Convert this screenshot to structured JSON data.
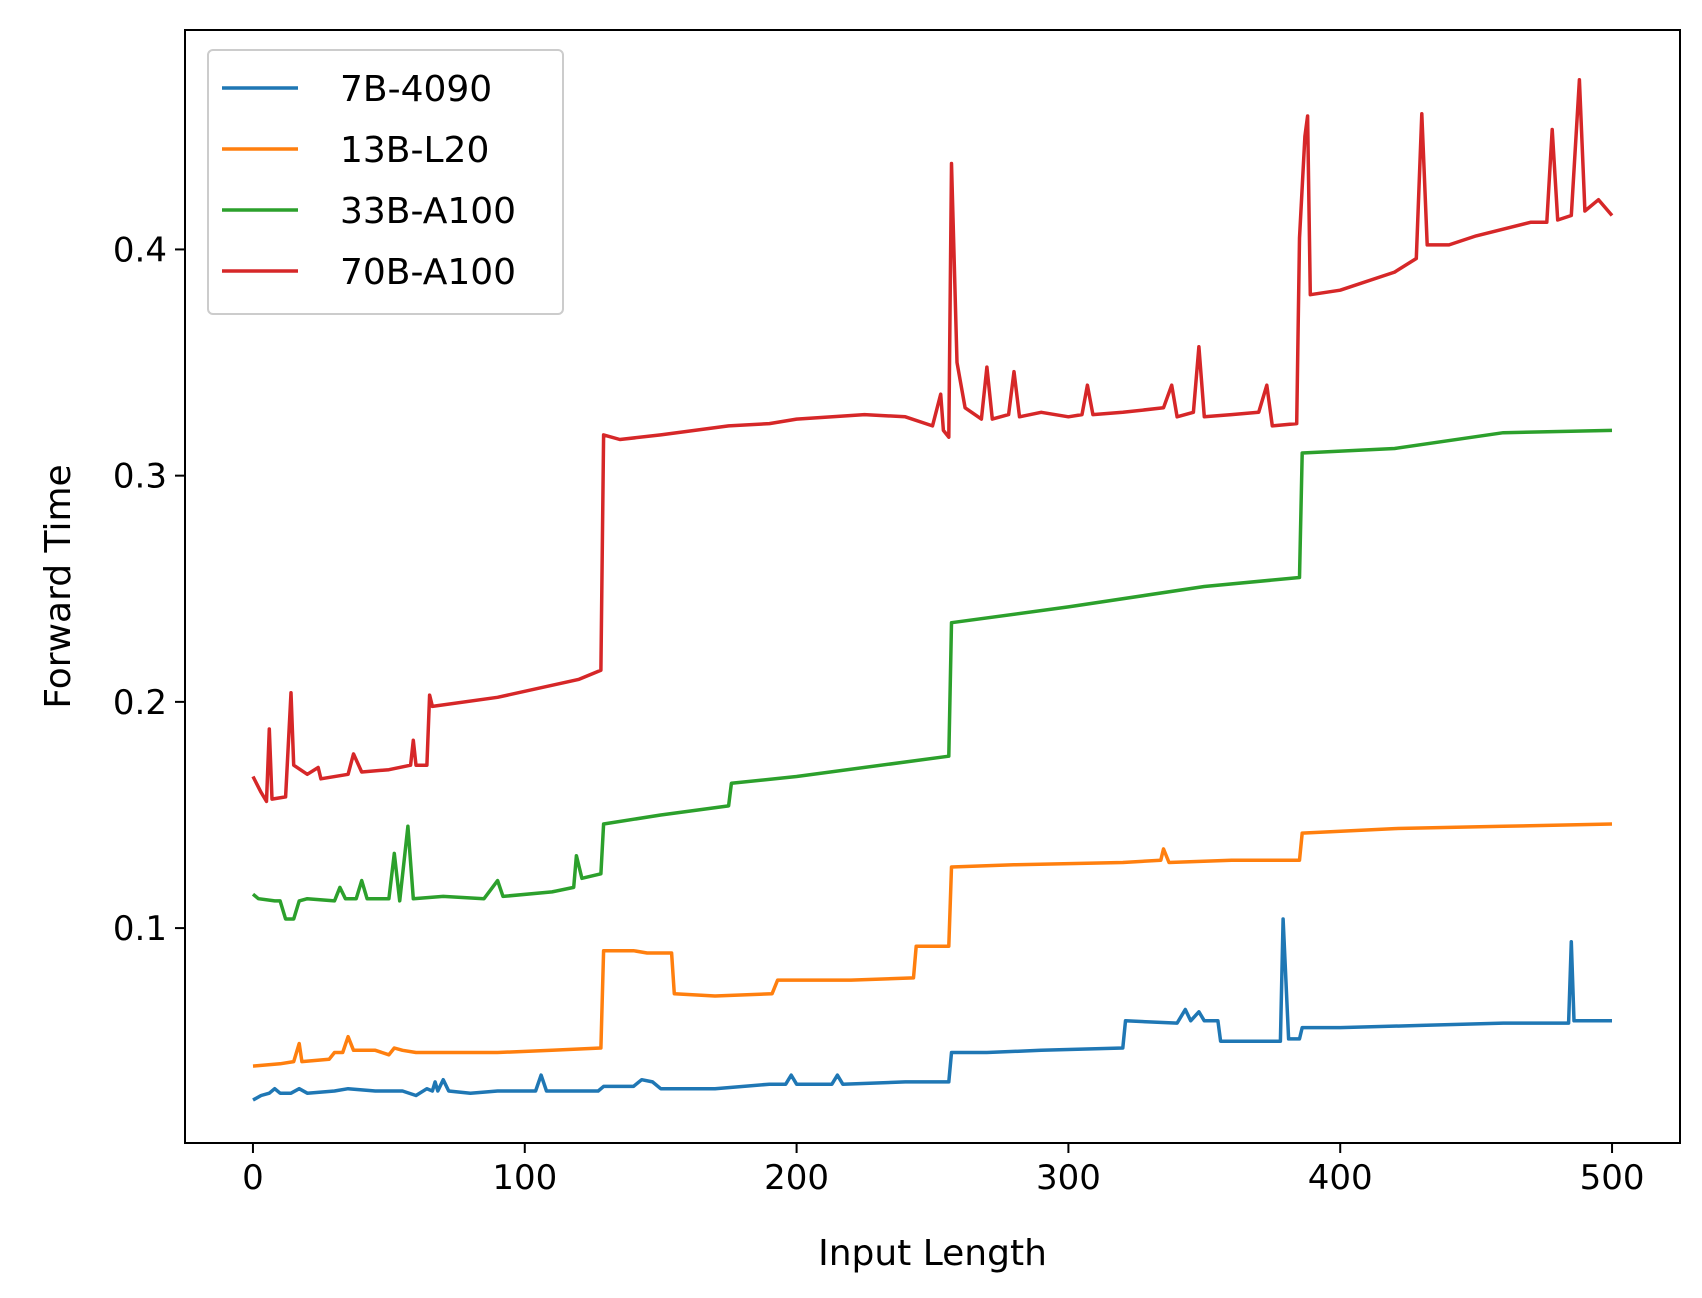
{
  "chart_data": {
    "type": "line",
    "xlabel": "Input Length",
    "ylabel": "Forward Time",
    "xlim": [
      -25,
      525
    ],
    "ylim": [
      0.005,
      0.497
    ],
    "xticks": [
      0,
      100,
      200,
      300,
      400,
      500
    ],
    "yticks": [
      0.1,
      0.2,
      0.3,
      0.4
    ],
    "xtick_labels": [
      "0",
      "100",
      "200",
      "300",
      "400",
      "500"
    ],
    "ytick_labels": [
      "0.1",
      "0.2",
      "0.3",
      "0.4"
    ],
    "grid": false,
    "legend_position": "top-left",
    "series": [
      {
        "name": "7B-4090",
        "color": "#1f77b4",
        "points": [
          [
            0,
            0.024
          ],
          [
            3,
            0.026
          ],
          [
            6,
            0.027
          ],
          [
            8,
            0.029
          ],
          [
            10,
            0.027
          ],
          [
            14,
            0.027
          ],
          [
            17,
            0.029
          ],
          [
            20,
            0.027
          ],
          [
            30,
            0.028
          ],
          [
            35,
            0.029
          ],
          [
            45,
            0.028
          ],
          [
            55,
            0.028
          ],
          [
            60,
            0.026
          ],
          [
            64,
            0.029
          ],
          [
            66,
            0.028
          ],
          [
            67,
            0.032
          ],
          [
            68,
            0.028
          ],
          [
            70,
            0.033
          ],
          [
            72,
            0.028
          ],
          [
            80,
            0.027
          ],
          [
            90,
            0.028
          ],
          [
            104,
            0.028
          ],
          [
            106,
            0.035
          ],
          [
            108,
            0.028
          ],
          [
            120,
            0.028
          ],
          [
            127,
            0.028
          ],
          [
            129,
            0.03
          ],
          [
            140,
            0.03
          ],
          [
            143,
            0.033
          ],
          [
            147,
            0.032
          ],
          [
            150,
            0.029
          ],
          [
            170,
            0.029
          ],
          [
            190,
            0.031
          ],
          [
            196,
            0.031
          ],
          [
            198,
            0.035
          ],
          [
            200,
            0.031
          ],
          [
            213,
            0.031
          ],
          [
            215,
            0.035
          ],
          [
            217,
            0.031
          ],
          [
            240,
            0.032
          ],
          [
            256,
            0.032
          ],
          [
            257,
            0.045
          ],
          [
            270,
            0.045
          ],
          [
            290,
            0.046
          ],
          [
            320,
            0.047
          ],
          [
            321,
            0.059
          ],
          [
            340,
            0.058
          ],
          [
            343,
            0.064
          ],
          [
            345,
            0.059
          ],
          [
            348,
            0.063
          ],
          [
            350,
            0.059
          ],
          [
            355,
            0.059
          ],
          [
            356,
            0.05
          ],
          [
            378,
            0.05
          ],
          [
            379,
            0.104
          ],
          [
            381,
            0.051
          ],
          [
            385,
            0.051
          ],
          [
            386,
            0.056
          ],
          [
            400,
            0.056
          ],
          [
            430,
            0.057
          ],
          [
            460,
            0.058
          ],
          [
            484,
            0.058
          ],
          [
            485,
            0.094
          ],
          [
            486,
            0.059
          ],
          [
            500,
            0.059
          ]
        ]
      },
      {
        "name": "13B-L20",
        "color": "#ff7f0e",
        "points": [
          [
            0,
            0.039
          ],
          [
            10,
            0.04
          ],
          [
            15,
            0.041
          ],
          [
            17,
            0.049
          ],
          [
            18,
            0.041
          ],
          [
            28,
            0.042
          ],
          [
            30,
            0.045
          ],
          [
            33,
            0.045
          ],
          [
            35,
            0.052
          ],
          [
            37,
            0.046
          ],
          [
            45,
            0.046
          ],
          [
            50,
            0.044
          ],
          [
            52,
            0.047
          ],
          [
            55,
            0.046
          ],
          [
            60,
            0.045
          ],
          [
            64,
            0.045
          ],
          [
            70,
            0.045
          ],
          [
            90,
            0.045
          ],
          [
            110,
            0.046
          ],
          [
            128,
            0.047
          ],
          [
            129,
            0.09
          ],
          [
            140,
            0.09
          ],
          [
            145,
            0.089
          ],
          [
            154,
            0.089
          ],
          [
            155,
            0.071
          ],
          [
            170,
            0.07
          ],
          [
            191,
            0.071
          ],
          [
            193,
            0.077
          ],
          [
            220,
            0.077
          ],
          [
            243,
            0.078
          ],
          [
            244,
            0.092
          ],
          [
            256,
            0.092
          ],
          [
            257,
            0.127
          ],
          [
            280,
            0.128
          ],
          [
            320,
            0.129
          ],
          [
            334,
            0.13
          ],
          [
            335,
            0.135
          ],
          [
            337,
            0.129
          ],
          [
            360,
            0.13
          ],
          [
            385,
            0.13
          ],
          [
            386,
            0.142
          ],
          [
            420,
            0.144
          ],
          [
            460,
            0.145
          ],
          [
            500,
            0.146
          ]
        ]
      },
      {
        "name": "33B-A100",
        "color": "#2ca02c",
        "points": [
          [
            0,
            0.115
          ],
          [
            2,
            0.113
          ],
          [
            8,
            0.112
          ],
          [
            10,
            0.112
          ],
          [
            12,
            0.104
          ],
          [
            15,
            0.104
          ],
          [
            17,
            0.112
          ],
          [
            20,
            0.113
          ],
          [
            30,
            0.112
          ],
          [
            32,
            0.118
          ],
          [
            34,
            0.113
          ],
          [
            38,
            0.113
          ],
          [
            40,
            0.121
          ],
          [
            42,
            0.113
          ],
          [
            50,
            0.113
          ],
          [
            52,
            0.133
          ],
          [
            54,
            0.112
          ],
          [
            57,
            0.145
          ],
          [
            59,
            0.113
          ],
          [
            70,
            0.114
          ],
          [
            85,
            0.113
          ],
          [
            90,
            0.121
          ],
          [
            92,
            0.114
          ],
          [
            110,
            0.116
          ],
          [
            118,
            0.118
          ],
          [
            119,
            0.132
          ],
          [
            121,
            0.122
          ],
          [
            128,
            0.124
          ],
          [
            129,
            0.146
          ],
          [
            150,
            0.15
          ],
          [
            175,
            0.154
          ],
          [
            176,
            0.164
          ],
          [
            200,
            0.167
          ],
          [
            256,
            0.176
          ],
          [
            257,
            0.235
          ],
          [
            300,
            0.242
          ],
          [
            350,
            0.251
          ],
          [
            385,
            0.255
          ],
          [
            386,
            0.31
          ],
          [
            420,
            0.312
          ],
          [
            460,
            0.319
          ],
          [
            500,
            0.32
          ]
        ]
      },
      {
        "name": "70B-A100",
        "color": "#d62728",
        "points": [
          [
            0,
            0.167
          ],
          [
            3,
            0.16
          ],
          [
            5,
            0.156
          ],
          [
            6,
            0.188
          ],
          [
            7,
            0.157
          ],
          [
            12,
            0.158
          ],
          [
            14,
            0.204
          ],
          [
            15,
            0.172
          ],
          [
            20,
            0.168
          ],
          [
            24,
            0.171
          ],
          [
            25,
            0.166
          ],
          [
            35,
            0.168
          ],
          [
            37,
            0.177
          ],
          [
            40,
            0.169
          ],
          [
            50,
            0.17
          ],
          [
            58,
            0.172
          ],
          [
            59,
            0.183
          ],
          [
            60,
            0.172
          ],
          [
            64,
            0.172
          ],
          [
            65,
            0.203
          ],
          [
            66,
            0.198
          ],
          [
            90,
            0.202
          ],
          [
            120,
            0.21
          ],
          [
            128,
            0.214
          ],
          [
            129,
            0.318
          ],
          [
            135,
            0.316
          ],
          [
            150,
            0.318
          ],
          [
            175,
            0.322
          ],
          [
            190,
            0.323
          ],
          [
            200,
            0.325
          ],
          [
            225,
            0.327
          ],
          [
            240,
            0.326
          ],
          [
            250,
            0.322
          ],
          [
            253,
            0.336
          ],
          [
            254,
            0.32
          ],
          [
            256,
            0.317
          ],
          [
            257,
            0.438
          ],
          [
            259,
            0.35
          ],
          [
            262,
            0.33
          ],
          [
            268,
            0.325
          ],
          [
            270,
            0.348
          ],
          [
            272,
            0.325
          ],
          [
            278,
            0.327
          ],
          [
            280,
            0.346
          ],
          [
            282,
            0.326
          ],
          [
            290,
            0.328
          ],
          [
            300,
            0.326
          ],
          [
            305,
            0.327
          ],
          [
            307,
            0.34
          ],
          [
            309,
            0.327
          ],
          [
            320,
            0.328
          ],
          [
            335,
            0.33
          ],
          [
            338,
            0.34
          ],
          [
            340,
            0.326
          ],
          [
            346,
            0.328
          ],
          [
            348,
            0.357
          ],
          [
            350,
            0.326
          ],
          [
            360,
            0.327
          ],
          [
            370,
            0.328
          ],
          [
            373,
            0.34
          ],
          [
            375,
            0.322
          ],
          [
            384,
            0.323
          ],
          [
            385,
            0.405
          ],
          [
            387,
            0.45
          ],
          [
            388,
            0.459
          ],
          [
            389,
            0.38
          ],
          [
            400,
            0.382
          ],
          [
            420,
            0.39
          ],
          [
            428,
            0.396
          ],
          [
            430,
            0.46
          ],
          [
            432,
            0.402
          ],
          [
            440,
            0.402
          ],
          [
            450,
            0.406
          ],
          [
            470,
            0.412
          ],
          [
            476,
            0.412
          ],
          [
            478,
            0.453
          ],
          [
            480,
            0.413
          ],
          [
            485,
            0.415
          ],
          [
            488,
            0.475
          ],
          [
            490,
            0.417
          ],
          [
            495,
            0.422
          ],
          [
            500,
            0.415
          ]
        ]
      }
    ]
  }
}
